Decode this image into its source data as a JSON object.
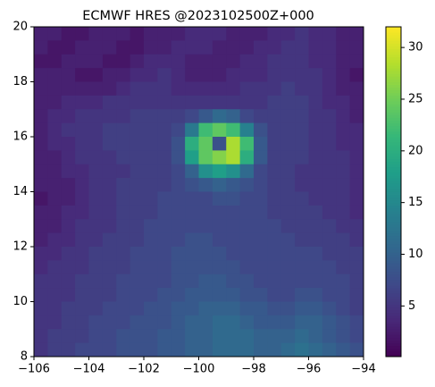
{
  "chart_data": {
    "type": "heatmap",
    "title": "ECMWF HRES @2023102500Z+000",
    "colormap": "viridis",
    "x": [
      -105.75,
      -105.25,
      -104.75,
      -104.25,
      -103.75,
      -103.25,
      -102.75,
      -102.25,
      -101.75,
      -101.25,
      -100.75,
      -100.25,
      -99.75,
      -99.25,
      -98.75,
      -98.25,
      -97.75,
      -97.25,
      -96.75,
      -96.25,
      -95.75,
      -95.25,
      -94.75,
      -94.25
    ],
    "y": [
      19.75,
      19.25,
      18.75,
      18.25,
      17.75,
      17.25,
      16.75,
      16.25,
      15.75,
      15.25,
      14.75,
      14.25,
      13.75,
      13.25,
      12.75,
      12.25,
      11.75,
      11.25,
      10.75,
      10.25,
      9.75,
      9.25,
      8.75,
      8.25
    ],
    "values": [
      [
        3,
        3,
        2,
        2,
        3,
        3,
        3,
        2,
        3,
        3,
        3,
        4,
        4,
        4,
        3,
        3,
        3,
        4,
        4,
        5,
        4,
        4,
        3,
        3
      ],
      [
        3,
        2,
        2,
        3,
        3,
        3,
        2,
        2,
        3,
        3,
        4,
        4,
        4,
        3,
        3,
        3,
        4,
        4,
        5,
        5,
        4,
        4,
        3,
        3
      ],
      [
        2,
        2,
        3,
        3,
        3,
        2,
        2,
        3,
        4,
        4,
        4,
        3,
        3,
        3,
        3,
        4,
        4,
        5,
        5,
        5,
        4,
        4,
        3,
        3
      ],
      [
        3,
        3,
        3,
        2,
        2,
        3,
        3,
        4,
        4,
        5,
        4,
        3,
        3,
        3,
        4,
        4,
        4,
        5,
        5,
        5,
        5,
        4,
        3,
        2
      ],
      [
        3,
        3,
        3,
        3,
        3,
        3,
        4,
        5,
        5,
        5,
        4,
        4,
        4,
        4,
        4,
        5,
        5,
        5,
        6,
        5,
        5,
        4,
        3,
        3
      ],
      [
        3,
        3,
        4,
        4,
        4,
        5,
        5,
        5,
        5,
        5,
        5,
        5,
        5,
        5,
        5,
        5,
        5,
        6,
        6,
        6,
        5,
        4,
        4,
        3
      ],
      [
        3,
        4,
        4,
        5,
        5,
        5,
        5,
        6,
        6,
        6,
        6,
        7,
        9,
        11,
        10,
        7,
        6,
        6,
        6,
        6,
        5,
        5,
        4,
        3
      ],
      [
        3,
        4,
        5,
        5,
        5,
        6,
        6,
        6,
        6,
        6,
        7,
        13,
        22,
        24,
        22,
        14,
        8,
        6,
        6,
        6,
        5,
        5,
        4,
        4
      ],
      [
        3,
        4,
        4,
        5,
        5,
        6,
        6,
        6,
        6,
        6,
        8,
        20,
        24,
        8,
        28,
        22,
        9,
        6,
        6,
        6,
        5,
        5,
        4,
        4
      ],
      [
        3,
        3,
        4,
        5,
        5,
        5,
        6,
        6,
        6,
        6,
        8,
        18,
        24,
        26,
        28,
        20,
        9,
        6,
        6,
        6,
        5,
        5,
        5,
        4
      ],
      [
        3,
        3,
        4,
        4,
        5,
        5,
        5,
        6,
        6,
        6,
        7,
        10,
        16,
        18,
        16,
        11,
        7,
        6,
        6,
        5,
        5,
        5,
        5,
        4
      ],
      [
        3,
        3,
        3,
        4,
        5,
        5,
        6,
        6,
        6,
        6,
        7,
        8,
        9,
        10,
        9,
        8,
        7,
        6,
        6,
        5,
        5,
        5,
        5,
        4
      ],
      [
        2,
        3,
        3,
        4,
        5,
        5,
        6,
        6,
        6,
        7,
        7,
        7,
        7,
        8,
        8,
        7,
        7,
        6,
        6,
        6,
        5,
        5,
        5,
        4
      ],
      [
        3,
        3,
        4,
        4,
        5,
        5,
        6,
        6,
        6,
        7,
        7,
        7,
        7,
        7,
        7,
        7,
        7,
        6,
        6,
        6,
        6,
        5,
        5,
        4
      ],
      [
        3,
        3,
        4,
        5,
        5,
        5,
        6,
        6,
        7,
        7,
        7,
        7,
        7,
        7,
        7,
        7,
        7,
        7,
        6,
        6,
        6,
        6,
        5,
        5
      ],
      [
        3,
        4,
        4,
        5,
        5,
        6,
        6,
        6,
        7,
        7,
        7,
        8,
        8,
        7,
        7,
        7,
        7,
        7,
        7,
        6,
        6,
        6,
        6,
        5
      ],
      [
        4,
        4,
        5,
        5,
        6,
        6,
        6,
        7,
        7,
        7,
        8,
        8,
        8,
        8,
        7,
        7,
        7,
        7,
        7,
        7,
        7,
        6,
        6,
        6
      ],
      [
        4,
        5,
        5,
        5,
        6,
        6,
        6,
        7,
        7,
        7,
        8,
        8,
        8,
        8,
        8,
        7,
        7,
        7,
        7,
        7,
        7,
        7,
        6,
        6
      ],
      [
        5,
        5,
        5,
        6,
        6,
        6,
        7,
        7,
        7,
        7,
        8,
        8,
        9,
        9,
        8,
        8,
        7,
        7,
        7,
        7,
        7,
        7,
        7,
        6
      ],
      [
        5,
        5,
        5,
        6,
        6,
        6,
        7,
        7,
        7,
        8,
        8,
        9,
        9,
        9,
        9,
        8,
        8,
        7,
        7,
        8,
        8,
        7,
        7,
        6
      ],
      [
        5,
        5,
        6,
        6,
        6,
        7,
        7,
        7,
        8,
        8,
        9,
        9,
        10,
        10,
        10,
        9,
        9,
        8,
        8,
        9,
        9,
        8,
        7,
        6
      ],
      [
        5,
        5,
        6,
        6,
        7,
        7,
        7,
        8,
        8,
        8,
        9,
        10,
        10,
        11,
        11,
        10,
        9,
        9,
        9,
        10,
        10,
        9,
        8,
        7
      ],
      [
        5,
        6,
        6,
        6,
        7,
        7,
        8,
        8,
        8,
        9,
        9,
        10,
        10,
        11,
        11,
        11,
        10,
        10,
        10,
        11,
        10,
        9,
        8,
        7
      ],
      [
        5,
        6,
        6,
        7,
        7,
        7,
        8,
        8,
        8,
        9,
        9,
        10,
        10,
        11,
        11,
        11,
        10,
        10,
        11,
        12,
        11,
        10,
        9,
        8
      ]
    ],
    "xlim": [
      -106,
      -94
    ],
    "xticks": [
      {
        "value": -106,
        "label": "−106"
      },
      {
        "value": -104,
        "label": "−104"
      },
      {
        "value": -102,
        "label": "−102"
      },
      {
        "value": -100,
        "label": "−100"
      },
      {
        "value": -98,
        "label": "−98"
      },
      {
        "value": -96,
        "label": "−96"
      },
      {
        "value": -94,
        "label": "−94"
      }
    ],
    "ylim": [
      8,
      20
    ],
    "yticks": [
      8,
      10,
      12,
      14,
      16,
      18,
      20
    ],
    "colorbar": {
      "lim": [
        0.1,
        32
      ],
      "ticks": [
        5,
        10,
        15,
        20,
        25,
        30
      ]
    }
  }
}
